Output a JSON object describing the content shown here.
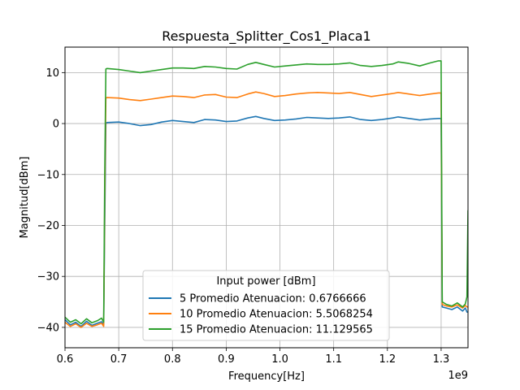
{
  "chart_data": {
    "type": "line",
    "title": "Respuesta_Splitter_Cos1_Placa1",
    "xlabel": "Frequency[Hz]",
    "ylabel": "Magnitud[dBm]",
    "x_offset_label": "1e9",
    "xlim": [
      0.6,
      1.35
    ],
    "ylim": [
      -44,
      15
    ],
    "x_ticks": [
      0.6,
      0.7,
      0.8,
      0.9,
      1.0,
      1.1,
      1.2,
      1.3
    ],
    "x_tick_labels": [
      "0.6",
      "0.7",
      "0.8",
      "0.9",
      "1.0",
      "1.1",
      "1.2",
      "1.3"
    ],
    "y_ticks": [
      10,
      0,
      -10,
      -20,
      -30,
      -40
    ],
    "y_tick_labels": [
      "10",
      "0",
      "−10",
      "−20",
      "−30",
      "−40"
    ],
    "grid": true,
    "legend": {
      "title": "Input power [dBm]",
      "placement": "lower-center"
    },
    "series": [
      {
        "name": "5 Promedio Atenuacion: 0.6766666",
        "color": "#1f77b4",
        "x": [
          0.6,
          0.61,
          0.62,
          0.63,
          0.64,
          0.65,
          0.66,
          0.668,
          0.672,
          0.674,
          0.676,
          0.678,
          0.7,
          0.72,
          0.74,
          0.76,
          0.78,
          0.8,
          0.82,
          0.84,
          0.86,
          0.88,
          0.9,
          0.92,
          0.94,
          0.955,
          0.97,
          0.99,
          1.01,
          1.03,
          1.05,
          1.07,
          1.09,
          1.11,
          1.13,
          1.15,
          1.17,
          1.19,
          1.21,
          1.22,
          1.24,
          1.26,
          1.28,
          1.295,
          1.298,
          1.3,
          1.302,
          1.31,
          1.32,
          1.33,
          1.34,
          1.345,
          1.348,
          1.35
        ],
        "y": [
          -38.5,
          -39.5,
          -39.0,
          -39.8,
          -38.8,
          -39.6,
          -39.2,
          -38.9,
          -39.5,
          -20.0,
          0.0,
          0.2,
          0.3,
          0.0,
          -0.4,
          -0.2,
          0.3,
          0.6,
          0.4,
          0.2,
          0.8,
          0.7,
          0.4,
          0.5,
          1.1,
          1.4,
          1.0,
          0.6,
          0.7,
          0.9,
          1.2,
          1.1,
          1.0,
          1.1,
          1.3,
          0.8,
          0.6,
          0.8,
          1.1,
          1.3,
          1.0,
          0.7,
          0.9,
          1.0,
          1.0,
          1.0,
          -36.0,
          -36.2,
          -36.5,
          -36.0,
          -36.8,
          -36.2,
          -37.0,
          -37.0
        ]
      },
      {
        "name": "10 Promedio Atenuacion: 5.5068254",
        "color": "#ff7f0e",
        "x": [
          0.6,
          0.61,
          0.62,
          0.63,
          0.64,
          0.65,
          0.66,
          0.668,
          0.672,
          0.674,
          0.676,
          0.678,
          0.7,
          0.72,
          0.74,
          0.76,
          0.78,
          0.8,
          0.82,
          0.84,
          0.86,
          0.88,
          0.9,
          0.92,
          0.94,
          0.955,
          0.97,
          0.99,
          1.01,
          1.03,
          1.05,
          1.07,
          1.09,
          1.11,
          1.13,
          1.15,
          1.17,
          1.19,
          1.21,
          1.22,
          1.24,
          1.26,
          1.28,
          1.295,
          1.298,
          1.3,
          1.302,
          1.31,
          1.32,
          1.33,
          1.34,
          1.345,
          1.348,
          1.35
        ],
        "y": [
          -39.0,
          -39.8,
          -39.3,
          -40.0,
          -39.2,
          -39.8,
          -39.5,
          -39.2,
          -39.8,
          -15.0,
          5.0,
          5.1,
          5.0,
          4.7,
          4.5,
          4.8,
          5.1,
          5.4,
          5.3,
          5.1,
          5.6,
          5.7,
          5.2,
          5.1,
          5.8,
          6.2,
          5.9,
          5.3,
          5.5,
          5.8,
          6.0,
          6.1,
          6.0,
          5.9,
          6.1,
          5.7,
          5.3,
          5.6,
          5.9,
          6.1,
          5.8,
          5.5,
          5.8,
          6.0,
          6.0,
          6.0,
          -35.5,
          -35.8,
          -36.0,
          -35.6,
          -36.2,
          -35.7,
          -36.0,
          -36.0
        ]
      },
      {
        "name": "15 Promedio Atenuacion: 11.129565",
        "color": "#2ca02c",
        "x": [
          0.6,
          0.61,
          0.62,
          0.63,
          0.64,
          0.65,
          0.66,
          0.668,
          0.672,
          0.674,
          0.676,
          0.678,
          0.7,
          0.72,
          0.74,
          0.76,
          0.78,
          0.8,
          0.82,
          0.84,
          0.86,
          0.88,
          0.9,
          0.92,
          0.94,
          0.955,
          0.97,
          0.99,
          1.01,
          1.03,
          1.05,
          1.07,
          1.09,
          1.11,
          1.13,
          1.15,
          1.17,
          1.19,
          1.21,
          1.22,
          1.24,
          1.26,
          1.28,
          1.295,
          1.298,
          1.3,
          1.302,
          1.31,
          1.32,
          1.33,
          1.34,
          1.345,
          1.348,
          1.35
        ],
        "y": [
          -38.0,
          -39.0,
          -38.5,
          -39.3,
          -38.3,
          -39.1,
          -38.7,
          -38.2,
          -39.0,
          -10.0,
          10.7,
          10.8,
          10.6,
          10.3,
          10.0,
          10.3,
          10.6,
          10.9,
          10.9,
          10.8,
          11.2,
          11.1,
          10.8,
          10.7,
          11.6,
          12.0,
          11.6,
          11.1,
          11.3,
          11.5,
          11.7,
          11.6,
          11.6,
          11.7,
          11.9,
          11.4,
          11.2,
          11.4,
          11.7,
          12.1,
          11.8,
          11.3,
          11.9,
          12.3,
          12.3,
          12.3,
          -35.0,
          -35.5,
          -35.8,
          -35.2,
          -36.0,
          -35.4,
          -34.0,
          -17.0
        ]
      }
    ]
  }
}
